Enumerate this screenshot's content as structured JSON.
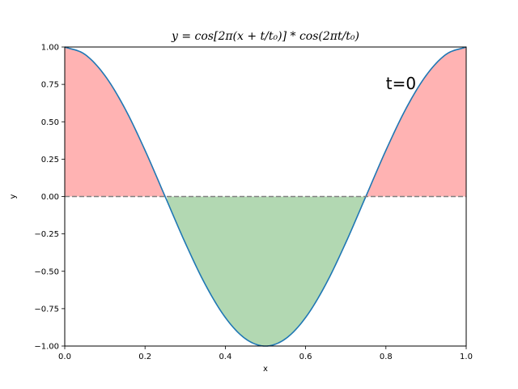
{
  "chart_data": {
    "type": "line",
    "title": "y = cos[2π(x + t/t₀)] * cos(2πt/t₀)",
    "xlabel": "x",
    "ylabel": "y",
    "xlim": [
      0,
      1
    ],
    "ylim": [
      -1,
      1
    ],
    "x_ticks": [
      "0.0",
      "0.2",
      "0.4",
      "0.6",
      "0.8",
      "1.0"
    ],
    "y_ticks": [
      "−1.00",
      "−0.75",
      "−0.50",
      "−0.25",
      "0.00",
      "0.25",
      "0.50",
      "0.75",
      "1.00"
    ],
    "x_tick_values": [
      0,
      0.2,
      0.4,
      0.6,
      0.8,
      1.0
    ],
    "y_tick_values": [
      -1,
      -0.75,
      -0.5,
      -0.25,
      0,
      0.25,
      0.5,
      0.75,
      1
    ],
    "series": [
      {
        "x": [
          0,
          0.05,
          0.1,
          0.15,
          0.2,
          0.25,
          0.3,
          0.35,
          0.4,
          0.45,
          0.5,
          0.55,
          0.6,
          0.65,
          0.7,
          0.75,
          0.8,
          0.85,
          0.9,
          0.95,
          1.0
        ],
        "y": [
          1,
          0.951,
          0.809,
          0.588,
          0.309,
          0,
          -0.309,
          -0.588,
          -0.809,
          -0.951,
          -1,
          -0.951,
          -0.809,
          -0.588,
          -0.309,
          0,
          0.309,
          0.588,
          0.809,
          0.951,
          1
        ]
      }
    ],
    "reference_line": {
      "y": 0,
      "style": "dashed"
    },
    "fill_positive_color": "#ffb3b3",
    "fill_negative_color": "#b2d8b2",
    "line_color": "#1f77b4",
    "reference_line_color": "#808080",
    "annotation": "t=0",
    "grid": false
  }
}
